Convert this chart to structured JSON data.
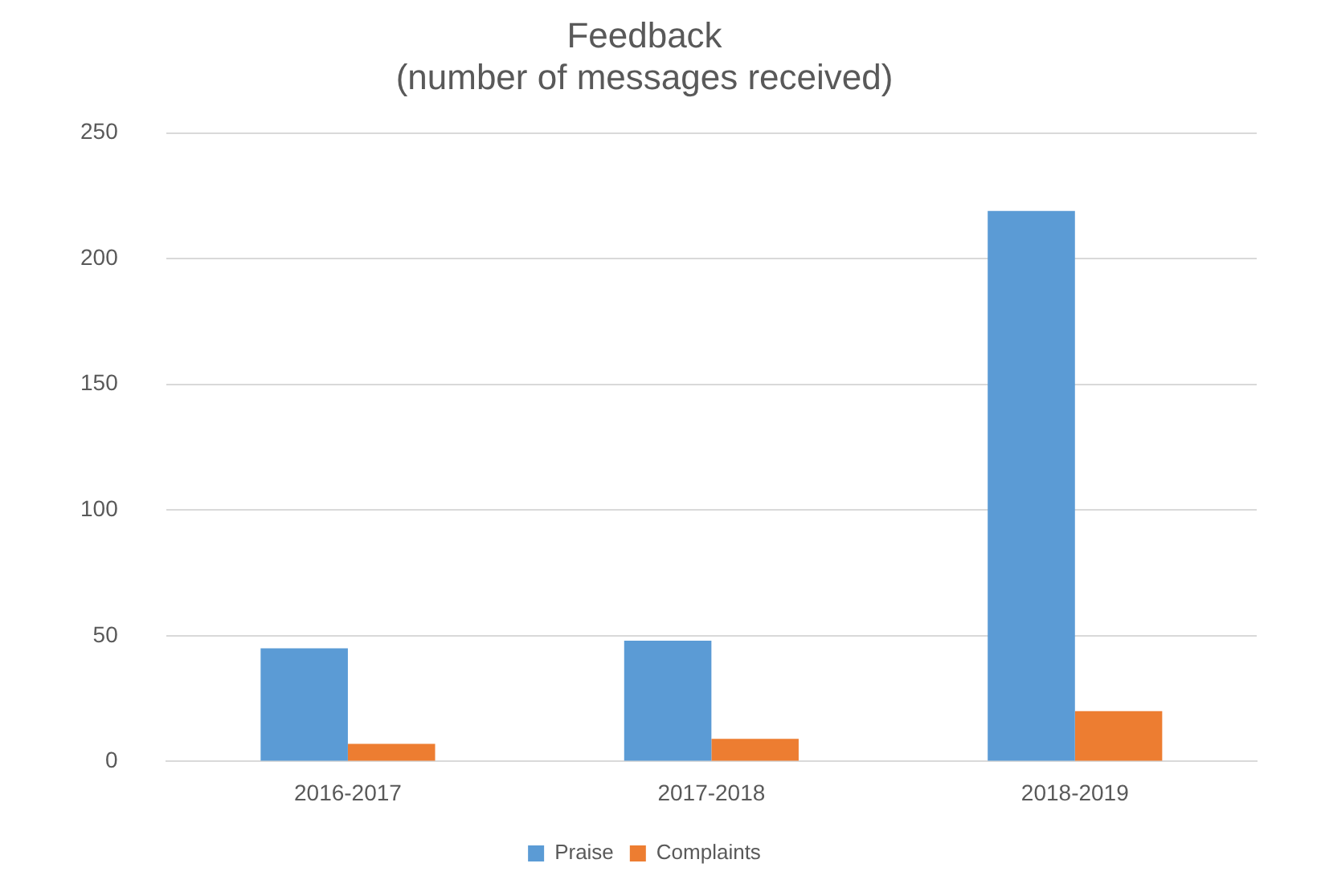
{
  "chart_data": {
    "type": "bar",
    "title": [
      "Feedback",
      "(number of messages received)"
    ],
    "categories": [
      "2016-2017",
      "2017-2018",
      "2018-2019"
    ],
    "series": [
      {
        "name": "Praise",
        "color": "#5b9bd5",
        "values": [
          45,
          48,
          219
        ]
      },
      {
        "name": "Complaints",
        "color": "#ed7d31",
        "values": [
          7,
          9,
          20
        ]
      }
    ],
    "ylim": [
      0,
      250
    ],
    "yticks": [
      0,
      50,
      100,
      150,
      200,
      250
    ],
    "grid": "y",
    "legend": "bottom"
  }
}
